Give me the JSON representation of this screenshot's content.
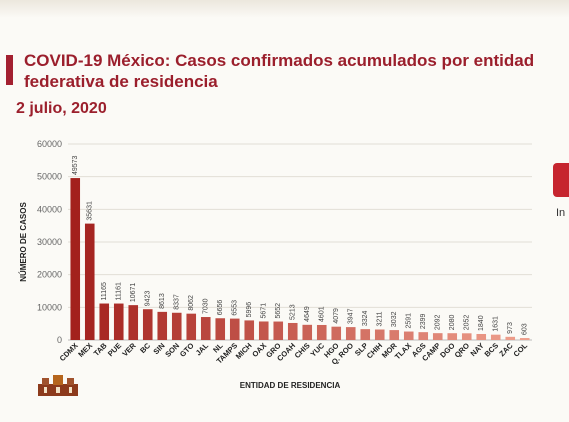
{
  "header": {
    "title": "COVID-19 México: Casos confirmados acumulados por entidad federativa de residencia",
    "date": "2 julio, 2020",
    "side_text": "In"
  },
  "colors": {
    "title": "#9b1f2c",
    "bar_dark": "#a3211d",
    "bar_light": "#efa08d"
  },
  "chart_data": {
    "type": "bar",
    "xlabel": "ENTIDAD DE RESIDENCIA",
    "ylabel": "NÚMERO DE CASOS",
    "ylim": [
      0,
      60000
    ],
    "yticks": [
      "0",
      "10000",
      "20000",
      "30000",
      "40000",
      "50000",
      "60000"
    ],
    "grid": true,
    "categories": [
      "CDMX",
      "MEX",
      "TAB",
      "PUE",
      "VER",
      "BC",
      "SIN",
      "SON",
      "GTO",
      "JAL",
      "NL",
      "TAMPS",
      "MICH",
      "OAX",
      "GRO",
      "COAH",
      "CHIS",
      "YUC",
      "HGO",
      "Q. ROO",
      "SLP",
      "CHIH",
      "MOR",
      "TLAX",
      "AGS",
      "CAMP",
      "DGO",
      "QRO",
      "NAY",
      "BCS",
      "ZAC",
      "COL"
    ],
    "values": [
      49573,
      35631,
      11165,
      11161,
      10671,
      9423,
      8613,
      8337,
      8062,
      7030,
      6656,
      6553,
      5996,
      5671,
      5652,
      5213,
      4649,
      4601,
      4079,
      3947,
      3324,
      3211,
      3032,
      2591,
      2399,
      2092,
      2080,
      2052,
      1840,
      1631,
      973,
      603
    ],
    "labels": [
      "49573",
      "35631",
      "11165",
      "11161",
      "10671",
      "9423",
      "8613",
      "8337",
      "8062",
      "7030",
      "6656",
      "6553",
      "5996",
      "5671",
      "5652",
      "5213",
      "4649",
      "4601",
      "4079",
      "3947",
      "3324",
      "3211",
      "3032",
      "2591",
      "2399",
      "2092",
      "2080",
      "2052",
      "1840",
      "1631",
      "973",
      "603"
    ]
  }
}
